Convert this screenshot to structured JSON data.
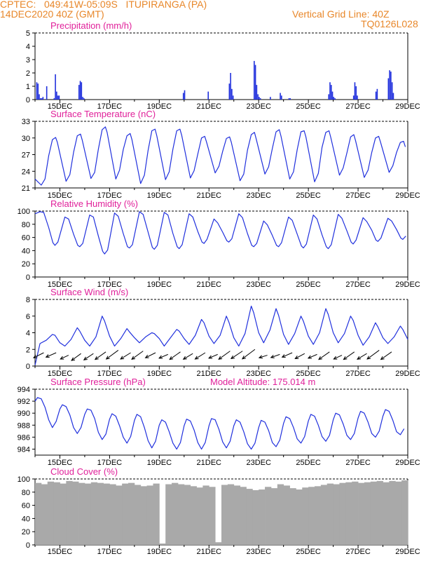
{
  "header": {
    "line1": "CPTEC:   049:41W-05:09S   ITUPIRANGA (PA)",
    "line2": "14DEC2020 40Z (GMT)",
    "grid_note": "Vertical Grid Line: 40Z",
    "code": "TQ0126L028"
  },
  "colors": {
    "header": "#e8872a",
    "title": "#e0209a",
    "series": "#2030dd",
    "cloud": "#a9a9a9",
    "arrow": "#000000"
  },
  "chart_data": [
    {
      "id": "precip",
      "type": "bar",
      "title": "Precipitation (mm/h)",
      "ylim": [
        0,
        5
      ],
      "yticks": [
        0,
        1,
        2,
        3,
        4,
        5
      ],
      "xticks": [
        "15DEC",
        "17DEC",
        "19DEC",
        "21DEC",
        "23DEC",
        "25DEC",
        "27DEC",
        "29DEC"
      ],
      "x_unit": "days since 14DEC 00Z",
      "x": [
        0.07,
        0.12,
        0.17,
        0.22,
        0.27,
        0.32,
        0.47,
        0.77,
        0.82,
        0.87,
        0.92,
        0.97,
        1.77,
        1.82,
        1.87,
        1.92,
        1.97,
        5.97,
        6.02,
        6.97,
        7.82,
        7.87,
        7.92,
        7.97,
        8.82,
        8.87,
        8.92,
        8.97,
        9.02,
        9.07,
        9.47,
        9.87,
        9.92,
        10.22,
        10.27,
        11.82,
        11.87,
        11.92,
        11.97,
        12.02,
        12.07,
        12.82,
        12.87,
        12.92,
        12.97,
        13.72,
        13.77,
        14.22,
        14.27,
        14.32,
        14.37,
        14.42
      ],
      "values": [
        1.3,
        1.2,
        0.4,
        0.1,
        0.1,
        0.2,
        1.0,
        0.1,
        1.9,
        0.6,
        0.3,
        0.3,
        1.1,
        1.4,
        1.3,
        0.2,
        0.1,
        0.5,
        0.7,
        0.6,
        1.2,
        2.0,
        0.8,
        0.3,
        2.9,
        2.6,
        1.1,
        0.4,
        0.2,
        0.1,
        0.2,
        0.5,
        0.3,
        0.1,
        0.1,
        0.4,
        1.3,
        1.1,
        0.6,
        0.2,
        0.1,
        0.3,
        1.3,
        1.0,
        0.3,
        0.6,
        0.8,
        1.6,
        2.2,
        2.1,
        1.3,
        0.5
      ]
    },
    {
      "id": "temp",
      "type": "line",
      "title": "Surface Temperature (nC)",
      "ylim": [
        21,
        33
      ],
      "yticks": [
        21,
        24,
        27,
        30,
        33
      ],
      "xticks": [
        "15DEC",
        "17DEC",
        "19DEC",
        "21DEC",
        "23DEC",
        "25DEC",
        "27DEC",
        "29DEC"
      ],
      "x": [
        0.0,
        0.25,
        0.4,
        0.55,
        0.7,
        0.83,
        0.9,
        1.25,
        1.4,
        1.55,
        1.7,
        1.83,
        1.9,
        2.25,
        2.4,
        2.55,
        2.7,
        2.83,
        2.9,
        3.25,
        3.4,
        3.55,
        3.7,
        3.83,
        3.9,
        4.25,
        4.4,
        4.55,
        4.7,
        4.83,
        4.9,
        5.25,
        5.4,
        5.55,
        5.7,
        5.83,
        5.9,
        6.25,
        6.4,
        6.55,
        6.7,
        6.83,
        6.9,
        7.25,
        7.4,
        7.55,
        7.7,
        7.83,
        7.9,
        8.25,
        8.4,
        8.55,
        8.7,
        8.83,
        8.9,
        9.25,
        9.4,
        9.55,
        9.7,
        9.83,
        9.9,
        10.25,
        10.4,
        10.55,
        10.7,
        10.83,
        10.9,
        11.25,
        11.4,
        11.55,
        11.7,
        11.83,
        11.9,
        12.25,
        12.4,
        12.55,
        12.7,
        12.83,
        12.9,
        13.25,
        13.4,
        13.55,
        13.7,
        13.83,
        13.9,
        14.25,
        14.4,
        14.55,
        14.7,
        14.83,
        14.9
      ],
      "values": [
        22.6,
        21.5,
        22.6,
        26.8,
        29.7,
        30.1,
        29.2,
        22.2,
        23.4,
        27.4,
        30.4,
        30.7,
        29.6,
        22.7,
        23.8,
        28.0,
        31.5,
        32.0,
        31.0,
        22.6,
        24.2,
        27.9,
        30.4,
        30.8,
        29.7,
        21.8,
        23.3,
        27.8,
        31.3,
        31.6,
        30.4,
        22.5,
        23.9,
        28.0,
        31.3,
        31.6,
        30.5,
        22.8,
        24.1,
        27.1,
        30.0,
        30.3,
        29.3,
        23.7,
        24.9,
        27.6,
        29.9,
        30.2,
        29.2,
        22.3,
        23.5,
        27.8,
        30.6,
        31.0,
        29.8,
        23.5,
        24.8,
        28.1,
        31.1,
        31.5,
        30.3,
        22.6,
        23.9,
        27.9,
        31.1,
        31.3,
        30.2,
        22.1,
        23.6,
        28.3,
        31.0,
        31.3,
        30.1,
        23.3,
        24.6,
        27.3,
        30.2,
        30.6,
        29.5,
        22.9,
        24.2,
        27.4,
        30.0,
        30.3,
        29.3,
        23.8,
        25.0,
        27.4,
        29.2,
        29.4,
        28.4
      ]
    },
    {
      "id": "rh",
      "type": "line",
      "title": "Relative Humidity (%)",
      "ylim": [
        0,
        100
      ],
      "yticks": [
        0,
        20,
        40,
        60,
        80,
        100
      ],
      "xticks": [
        "15DEC",
        "17DEC",
        "19DEC",
        "21DEC",
        "23DEC",
        "25DEC",
        "27DEC",
        "29DEC"
      ],
      "x": [
        0.0,
        0.2,
        0.35,
        0.55,
        0.72,
        0.8,
        0.92,
        1.2,
        1.35,
        1.55,
        1.72,
        1.8,
        1.92,
        2.2,
        2.35,
        2.55,
        2.72,
        2.8,
        2.92,
        3.2,
        3.35,
        3.55,
        3.72,
        3.8,
        3.92,
        4.2,
        4.35,
        4.55,
        4.72,
        4.8,
        4.92,
        5.2,
        5.35,
        5.55,
        5.72,
        5.8,
        5.92,
        6.2,
        6.35,
        6.55,
        6.72,
        6.8,
        6.92,
        7.2,
        7.35,
        7.55,
        7.72,
        7.8,
        7.92,
        8.2,
        8.35,
        8.55,
        8.72,
        8.8,
        8.92,
        9.2,
        9.35,
        9.55,
        9.72,
        9.8,
        9.92,
        10.2,
        10.35,
        10.55,
        10.72,
        10.8,
        10.92,
        11.2,
        11.35,
        11.55,
        11.72,
        11.8,
        11.92,
        12.2,
        12.35,
        12.55,
        12.72,
        12.8,
        12.92,
        13.2,
        13.35,
        13.55,
        13.72,
        13.8,
        13.92,
        14.2,
        14.35,
        14.55,
        14.72,
        14.8,
        14.92
      ],
      "values": [
        96.0,
        99.0,
        98.0,
        75.0,
        52.0,
        48.0,
        53.0,
        91.0,
        88.0,
        65.0,
        48.0,
        46.0,
        51.0,
        94.0,
        91.0,
        62.0,
        39.0,
        35.0,
        41.0,
        97.0,
        92.0,
        66.0,
        46.0,
        44.0,
        49.0,
        99.0,
        95.0,
        68.0,
        45.0,
        42.0,
        48.0,
        98.0,
        94.0,
        66.0,
        46.0,
        43.0,
        49.0,
        96.0,
        91.0,
        69.0,
        53.0,
        51.0,
        57.0,
        88.0,
        82.0,
        68.0,
        55.0,
        53.0,
        58.0,
        96.0,
        90.0,
        66.0,
        48.0,
        46.0,
        51.0,
        85.0,
        79.0,
        63.0,
        48.0,
        46.0,
        52.0,
        91.0,
        86.0,
        65.0,
        47.0,
        44.0,
        50.0,
        94.0,
        88.0,
        64.0,
        46.0,
        43.0,
        49.0,
        95.0,
        89.0,
        70.0,
        53.0,
        50.0,
        56.0,
        90.0,
        84.0,
        71.0,
        56.0,
        54.0,
        59.0,
        89.0,
        85.0,
        72.0,
        59.0,
        57.0,
        62.0
      ]
    },
    {
      "id": "wind",
      "type": "line",
      "title": "Surface Wind (m/s)",
      "ylim": [
        0,
        8
      ],
      "yticks": [
        0,
        2,
        4,
        6,
        8
      ],
      "xticks": [
        "15DEC",
        "17DEC",
        "19DEC",
        "21DEC",
        "23DEC",
        "25DEC",
        "27DEC",
        "29DEC"
      ],
      "x": [
        0.0,
        0.2,
        0.45,
        0.7,
        0.8,
        1.0,
        1.2,
        1.45,
        1.7,
        1.8,
        2.0,
        2.2,
        2.45,
        2.7,
        2.8,
        3.0,
        3.2,
        3.45,
        3.7,
        3.8,
        4.0,
        4.2,
        4.45,
        4.7,
        4.8,
        5.0,
        5.2,
        5.45,
        5.7,
        5.8,
        6.0,
        6.2,
        6.45,
        6.7,
        6.8,
        7.0,
        7.2,
        7.45,
        7.7,
        7.8,
        8.0,
        8.2,
        8.45,
        8.7,
        8.8,
        9.0,
        9.2,
        9.45,
        9.7,
        9.8,
        10.0,
        10.2,
        10.45,
        10.7,
        10.8,
        11.0,
        11.2,
        11.45,
        11.7,
        11.8,
        12.0,
        12.2,
        12.45,
        12.7,
        12.8,
        13.0,
        13.2,
        13.45,
        13.7,
        13.8,
        14.0,
        14.2,
        14.45,
        14.7,
        14.8,
        15.0
      ],
      "values": [
        0.1,
        2.7,
        3.1,
        3.8,
        3.7,
        2.8,
        2.4,
        3.2,
        4.6,
        4.2,
        3.1,
        2.4,
        3.5,
        6.0,
        5.4,
        3.6,
        2.4,
        3.3,
        4.5,
        4.1,
        3.4,
        2.8,
        3.5,
        4.0,
        3.9,
        3.3,
        2.4,
        3.4,
        4.4,
        4.2,
        3.3,
        2.6,
        3.7,
        5.6,
        5.2,
        3.6,
        2.7,
        3.7,
        6.0,
        5.3,
        3.4,
        2.4,
        3.9,
        7.2,
        6.4,
        4.0,
        2.8,
        4.3,
        6.9,
        6.1,
        3.8,
        2.6,
        3.9,
        6.0,
        5.4,
        3.6,
        2.6,
        4.0,
        6.9,
        6.2,
        4.0,
        2.8,
        3.9,
        6.0,
        5.5,
        3.7,
        2.5,
        3.5,
        5.2,
        4.7,
        3.4,
        2.7,
        3.5,
        4.8,
        4.4,
        3.2
      ]
    },
    {
      "id": "pressure",
      "type": "line",
      "title": "Surface Pressure (hPa)",
      "subtitle": "Model Altitude: 175.014 m",
      "ylim": [
        983,
        994
      ],
      "yticks": [
        984,
        986,
        988,
        990,
        992,
        994
      ],
      "xticks": [
        "15DEC",
        "17DEC",
        "19DEC",
        "21DEC",
        "23DEC",
        "25DEC",
        "27DEC",
        "29DEC"
      ],
      "x": [
        0.0,
        0.1,
        0.25,
        0.4,
        0.55,
        0.7,
        0.85,
        1.0,
        1.1,
        1.25,
        1.4,
        1.55,
        1.7,
        1.85,
        2.0,
        2.1,
        2.25,
        2.4,
        2.55,
        2.7,
        2.85,
        3.0,
        3.1,
        3.25,
        3.4,
        3.55,
        3.7,
        3.85,
        4.0,
        4.1,
        4.25,
        4.4,
        4.55,
        4.7,
        4.85,
        5.0,
        5.1,
        5.25,
        5.4,
        5.55,
        5.7,
        5.85,
        6.0,
        6.1,
        6.25,
        6.4,
        6.55,
        6.7,
        6.85,
        7.0,
        7.1,
        7.25,
        7.4,
        7.55,
        7.7,
        7.85,
        8.0,
        8.1,
        8.25,
        8.4,
        8.55,
        8.7,
        8.85,
        9.0,
        9.1,
        9.25,
        9.4,
        9.55,
        9.7,
        9.85,
        10.0,
        10.1,
        10.25,
        10.4,
        10.55,
        10.7,
        10.85,
        11.0,
        11.1,
        11.25,
        11.4,
        11.55,
        11.7,
        11.85,
        12.0,
        12.1,
        12.25,
        12.4,
        12.55,
        12.7,
        12.85,
        13.0,
        13.1,
        13.25,
        13.4,
        13.55,
        13.7,
        13.85,
        14.0,
        14.1,
        14.25,
        14.4,
        14.55,
        14.7,
        14.85
      ],
      "values": [
        992.0,
        992.6,
        992.4,
        991.0,
        988.9,
        987.6,
        988.6,
        990.7,
        991.4,
        991.1,
        989.7,
        987.6,
        986.6,
        987.6,
        989.8,
        990.7,
        990.5,
        989.1,
        986.8,
        985.6,
        986.5,
        989.0,
        989.9,
        989.5,
        987.9,
        986.0,
        985.0,
        986.1,
        988.8,
        989.8,
        989.4,
        987.6,
        985.4,
        984.2,
        985.3,
        988.0,
        988.9,
        988.5,
        986.9,
        985.0,
        984.0,
        985.1,
        987.9,
        989.0,
        988.7,
        987.2,
        985.1,
        984.0,
        985.1,
        987.9,
        989.1,
        988.9,
        987.3,
        985.2,
        984.2,
        985.3,
        987.9,
        988.9,
        988.5,
        986.9,
        984.9,
        984.0,
        985.0,
        987.6,
        988.8,
        988.5,
        987.1,
        985.1,
        984.4,
        985.5,
        988.3,
        989.4,
        989.1,
        987.6,
        985.7,
        985.0,
        986.1,
        988.7,
        989.8,
        989.5,
        988.0,
        986.1,
        985.3,
        986.3,
        988.9,
        990.0,
        989.7,
        988.2,
        986.3,
        985.6,
        986.6,
        989.2,
        990.3,
        990.0,
        988.5,
        986.6,
        986.0,
        987.0,
        989.5,
        990.6,
        990.3,
        988.8,
        986.9,
        986.4,
        987.4
      ]
    },
    {
      "id": "cloud",
      "type": "bar",
      "title": "Cloud Cover (%)",
      "ylim": [
        0,
        100
      ],
      "yticks": [
        0,
        20,
        40,
        60,
        80,
        100
      ],
      "xticks": [
        "15DEC",
        "17DEC",
        "19DEC",
        "21DEC",
        "23DEC",
        "25DEC",
        "27DEC",
        "29DEC"
      ],
      "x": [
        0.0,
        0.25,
        0.5,
        0.75,
        1.0,
        1.25,
        1.5,
        1.75,
        2.0,
        2.25,
        2.5,
        2.75,
        3.0,
        3.25,
        3.5,
        3.75,
        4.0,
        4.25,
        4.5,
        4.75,
        5.0,
        5.25,
        5.5,
        5.75,
        6.0,
        6.25,
        6.5,
        6.75,
        7.0,
        7.25,
        7.5,
        7.75,
        8.0,
        8.25,
        8.5,
        8.75,
        9.0,
        9.25,
        9.5,
        9.75,
        10.0,
        10.25,
        10.5,
        10.75,
        11.0,
        11.25,
        11.5,
        11.75,
        12.0,
        12.25,
        12.5,
        12.75,
        13.0,
        13.25,
        13.5,
        13.75,
        14.0,
        14.25,
        14.5,
        14.75
      ],
      "values": [
        94.0,
        92.0,
        96.0,
        95.0,
        93.0,
        97.0,
        96.0,
        94.0,
        93.0,
        95.0,
        94.0,
        93.0,
        92.0,
        90.0,
        93.0,
        94.0,
        91.0,
        89.0,
        90.0,
        93.0,
        2.0,
        92.0,
        94.0,
        92.0,
        91.0,
        89.0,
        87.0,
        90.0,
        88.0,
        4.0,
        91.0,
        92.0,
        90.0,
        88.0,
        85.0,
        83.0,
        84.0,
        88.0,
        86.0,
        92.0,
        90.0,
        86.0,
        84.0,
        87.0,
        88.0,
        89.0,
        91.0,
        93.0,
        92.0,
        94.0,
        95.0,
        96.0,
        94.0,
        95.0,
        96.0,
        97.0,
        95.0,
        97.0,
        96.0,
        98.0
      ]
    },
    {
      "id": "wind_vectors",
      "type": "scatter",
      "title": "Surface wind direction arrows",
      "x": [
        0.35,
        0.85,
        1.35,
        1.85,
        2.35,
        2.85,
        3.35,
        3.85,
        4.35,
        4.85,
        5.35,
        5.85,
        6.35,
        6.85,
        7.35,
        7.85,
        8.35,
        8.85,
        9.35,
        9.85,
        10.35,
        10.85,
        11.35,
        11.85,
        12.35,
        12.85,
        13.35,
        13.85,
        14.35
      ],
      "values": [
        1.6,
        1.6,
        1.3,
        1.5,
        1.5,
        1.7,
        1.9,
        1.6,
        1.8,
        1.6,
        1.4,
        1.7,
        1.5,
        1.6,
        1.4,
        1.8,
        1.8,
        2.0,
        1.3,
        1.4,
        1.6,
        1.5,
        1.4,
        1.7,
        1.3,
        1.7,
        1.5,
        1.9,
        1.7
      ],
      "u_m_s": [
        -1.6,
        -1.6,
        -1.3,
        -1.5,
        -1.5,
        -1.7,
        -1.9,
        -1.6,
        -1.8,
        -1.6,
        -1.4,
        -1.7,
        -1.5,
        -1.6,
        -1.4,
        -1.8,
        -1.8,
        -2.0,
        -1.3,
        -1.4,
        -1.6,
        -1.5,
        -1.4,
        -1.7,
        -1.3,
        -1.7,
        -1.5,
        -1.9,
        -1.7
      ],
      "v_m_s": [
        -0.8,
        -0.7,
        -0.6,
        -1.1,
        -1.0,
        -1.2,
        -1.4,
        -1.0,
        -1.3,
        -0.8,
        -0.6,
        -1.2,
        -0.9,
        -1.0,
        -0.6,
        -1.3,
        -1.2,
        -1.5,
        -0.4,
        -0.5,
        -0.7,
        -0.8,
        -0.6,
        -1.2,
        -0.6,
        -1.2,
        -0.9,
        -1.4,
        -1.2
      ]
    }
  ]
}
